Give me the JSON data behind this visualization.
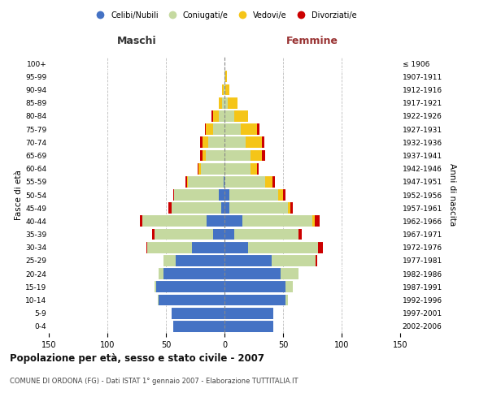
{
  "age_groups": [
    "0-4",
    "5-9",
    "10-14",
    "15-19",
    "20-24",
    "25-29",
    "30-34",
    "35-39",
    "40-44",
    "45-49",
    "50-54",
    "55-59",
    "60-64",
    "65-69",
    "70-74",
    "75-79",
    "80-84",
    "85-89",
    "90-94",
    "95-99",
    "100+"
  ],
  "birth_years": [
    "2002-2006",
    "1997-2001",
    "1992-1996",
    "1987-1991",
    "1982-1986",
    "1977-1981",
    "1972-1976",
    "1967-1971",
    "1962-1966",
    "1957-1961",
    "1952-1956",
    "1947-1951",
    "1942-1946",
    "1937-1941",
    "1932-1936",
    "1927-1931",
    "1922-1926",
    "1917-1921",
    "1912-1916",
    "1907-1911",
    "≤ 1906"
  ],
  "male": {
    "celibi": [
      44,
      45,
      56,
      58,
      52,
      42,
      28,
      10,
      15,
      3,
      5,
      1,
      0,
      0,
      0,
      0,
      0,
      0,
      0,
      0,
      0
    ],
    "coniugati": [
      0,
      0,
      1,
      2,
      4,
      10,
      38,
      50,
      55,
      42,
      38,
      30,
      20,
      16,
      14,
      10,
      5,
      2,
      1,
      0,
      0
    ],
    "vedovi": [
      0,
      0,
      0,
      0,
      0,
      0,
      0,
      0,
      0,
      0,
      0,
      1,
      2,
      3,
      5,
      6,
      5,
      3,
      1,
      0,
      0
    ],
    "divorziati": [
      0,
      0,
      0,
      0,
      0,
      0,
      1,
      2,
      2,
      3,
      1,
      1,
      1,
      2,
      2,
      1,
      1,
      0,
      0,
      0,
      0
    ]
  },
  "female": {
    "nubili": [
      42,
      42,
      52,
      52,
      48,
      40,
      20,
      8,
      15,
      4,
      4,
      0,
      0,
      0,
      0,
      0,
      0,
      0,
      0,
      0,
      0
    ],
    "coniugate": [
      0,
      0,
      2,
      6,
      15,
      38,
      60,
      55,
      60,
      50,
      42,
      35,
      22,
      22,
      18,
      14,
      8,
      3,
      1,
      1,
      0
    ],
    "vedove": [
      0,
      0,
      0,
      0,
      0,
      0,
      0,
      0,
      2,
      2,
      4,
      6,
      6,
      10,
      14,
      14,
      12,
      8,
      3,
      1,
      0
    ],
    "divorziate": [
      0,
      0,
      0,
      0,
      0,
      1,
      4,
      3,
      4,
      2,
      2,
      2,
      1,
      3,
      2,
      2,
      0,
      0,
      0,
      0,
      0
    ]
  },
  "colors": {
    "celibi": "#4472C4",
    "coniugati": "#C5D9A0",
    "vedovi": "#F5C518",
    "divorziati": "#CC0000"
  },
  "legend_labels": [
    "Celibi/Nubili",
    "Coniugati/e",
    "Vedovi/e",
    "Divorziati/e"
  ],
  "title": "Popolazione per età, sesso e stato civile - 2007",
  "subtitle": "COMUNE DI ORDONA (FG) - Dati ISTAT 1° gennaio 2007 - Elaborazione TUTTITALIA.IT",
  "xlabel_left": "Maschi",
  "xlabel_right": "Femmine",
  "ylabel_left": "Fasce di età",
  "ylabel_right": "Anni di nascita",
  "xlim": 150,
  "bg_color": "#ffffff",
  "grid_color": "#bbbbbb",
  "bar_height": 0.85
}
